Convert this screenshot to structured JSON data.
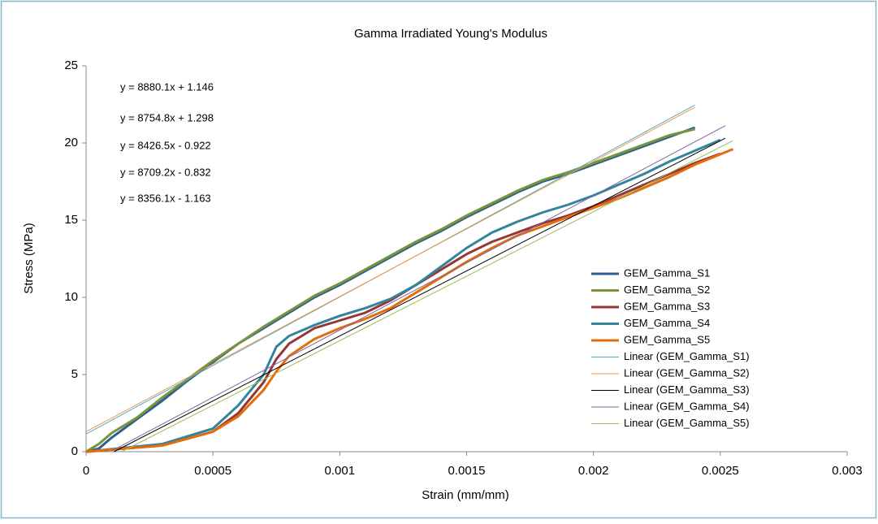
{
  "chart_data": {
    "type": "line",
    "title": "Gamma Irradiated Young's Modulus",
    "x_label": "Strain (mm/mm)",
    "y_label": "Stress (MPa)",
    "xlim": [
      0,
      0.003
    ],
    "xticks": [
      0,
      0.0005,
      0.001,
      0.0015,
      0.002,
      0.0025,
      0.003
    ],
    "ylim": [
      0,
      25
    ],
    "yticks": [
      0,
      5,
      10,
      15,
      20,
      25
    ],
    "annotations": [
      "y = 8880.1x + 1.146",
      "y = 8754.8x + 1.298",
      "y = 8426.5x - 0.922",
      "y = 8709.2x - 0.832",
      "y = 8356.1x - 1.163"
    ],
    "series": [
      {
        "name": "GEM_Gamma_S1",
        "color": "#2f5f8f",
        "width": 3,
        "x": [
          0,
          5e-05,
          0.0001,
          0.0002,
          0.0003,
          0.0004,
          0.0005,
          0.0006,
          0.0007,
          0.0008,
          0.0009,
          0.001,
          0.0011,
          0.0012,
          0.0013,
          0.0014,
          0.0015,
          0.0016,
          0.0017,
          0.0018,
          0.0019,
          0.002,
          0.0021,
          0.0022,
          0.0023,
          0.0024
        ],
        "values": [
          0,
          0.2,
          0.9,
          2.1,
          3.3,
          4.6,
          5.8,
          7.0,
          8.0,
          9.0,
          10.0,
          10.8,
          11.7,
          12.6,
          13.5,
          14.3,
          15.2,
          16.0,
          16.8,
          17.5,
          18.0,
          18.6,
          19.2,
          19.8,
          20.4,
          21.0
        ]
      },
      {
        "name": "GEM_Gamma_S2",
        "color": "#77933c",
        "width": 3,
        "x": [
          0,
          5e-05,
          0.0001,
          0.0002,
          0.0003,
          0.0004,
          0.0005,
          0.0006,
          0.0007,
          0.0008,
          0.0009,
          0.001,
          0.0011,
          0.0012,
          0.0013,
          0.0014,
          0.0015,
          0.0016,
          0.0017,
          0.0018,
          0.0019,
          0.002,
          0.0021,
          0.0022,
          0.0023,
          0.0024
        ],
        "values": [
          0,
          0.5,
          1.2,
          2.2,
          3.5,
          4.7,
          5.9,
          7.0,
          8.1,
          9.1,
          10.1,
          10.9,
          11.8,
          12.7,
          13.6,
          14.4,
          15.3,
          16.1,
          16.9,
          17.6,
          18.1,
          18.7,
          19.3,
          19.9,
          20.5,
          20.9
        ]
      },
      {
        "name": "GEM_Gamma_S3",
        "color": "#953735",
        "width": 3,
        "x": [
          0,
          0.0003,
          0.0005,
          0.0006,
          0.0007,
          0.00075,
          0.0008,
          0.0009,
          0.001,
          0.0011,
          0.0012,
          0.0013,
          0.0014,
          0.0015,
          0.0016,
          0.0017,
          0.0018,
          0.0019,
          0.002,
          0.0021,
          0.0022,
          0.0023,
          0.0024,
          0.0025
        ],
        "values": [
          0,
          0.4,
          1.3,
          2.5,
          4.5,
          6.0,
          7.0,
          8.0,
          8.5,
          9.0,
          9.8,
          10.8,
          11.8,
          12.8,
          13.6,
          14.2,
          14.8,
          15.3,
          15.9,
          16.6,
          17.3,
          18.0,
          18.7,
          19.3
        ]
      },
      {
        "name": "GEM_Gamma_S4",
        "color": "#31859c",
        "width": 3,
        "x": [
          0,
          0.0003,
          0.0005,
          0.0006,
          0.0007,
          0.00075,
          0.0008,
          0.0009,
          0.001,
          0.0011,
          0.0012,
          0.0013,
          0.0014,
          0.0015,
          0.0016,
          0.0017,
          0.0018,
          0.0019,
          0.002,
          0.0021,
          0.0022,
          0.0023,
          0.0024,
          0.0025
        ],
        "values": [
          0,
          0.5,
          1.5,
          3.0,
          5.0,
          6.8,
          7.5,
          8.2,
          8.8,
          9.3,
          9.9,
          10.8,
          12.0,
          13.2,
          14.2,
          14.9,
          15.5,
          16.0,
          16.6,
          17.3,
          18.0,
          18.8,
          19.5,
          20.2
        ]
      },
      {
        "name": "GEM_Gamma_S5",
        "color": "#e46c0a",
        "width": 3,
        "x": [
          0,
          0.0003,
          0.0005,
          0.0006,
          0.0007,
          0.00075,
          0.0008,
          0.0009,
          0.001,
          0.0011,
          0.0012,
          0.0013,
          0.0014,
          0.0015,
          0.0016,
          0.0017,
          0.0018,
          0.0019,
          0.002,
          0.0021,
          0.0022,
          0.0023,
          0.0024,
          0.00255
        ],
        "values": [
          0,
          0.4,
          1.3,
          2.3,
          4.0,
          5.2,
          6.2,
          7.3,
          8.0,
          8.6,
          9.3,
          10.3,
          11.3,
          12.3,
          13.2,
          14.0,
          14.6,
          15.2,
          15.8,
          16.4,
          17.1,
          17.8,
          18.6,
          19.6
        ]
      },
      {
        "name": "Linear (GEM_Gamma_S1)",
        "color": "#4bacc6",
        "width": 1,
        "x": [
          0,
          0.0024
        ],
        "values": [
          1.146,
          22.46
        ]
      },
      {
        "name": "Linear (GEM_Gamma_S2)",
        "color": "#f79646",
        "width": 1,
        "x": [
          0,
          0.0024
        ],
        "values": [
          1.298,
          22.31
        ]
      },
      {
        "name": "Linear (GEM_Gamma_S3)",
        "color": "#000000",
        "width": 1,
        "x": [
          0.00011,
          0.00252
        ],
        "values": [
          0,
          20.31
        ]
      },
      {
        "name": "Linear (GEM_Gamma_S4)",
        "color": "#8064a2",
        "width": 1,
        "x": [
          0.0001,
          0.00252
        ],
        "values": [
          0.04,
          21.12
        ]
      },
      {
        "name": "Linear (GEM_Gamma_S5)",
        "color": "#9bbb59",
        "width": 1,
        "x": [
          0.00014,
          0.00255
        ],
        "values": [
          0,
          20.15
        ]
      }
    ]
  }
}
